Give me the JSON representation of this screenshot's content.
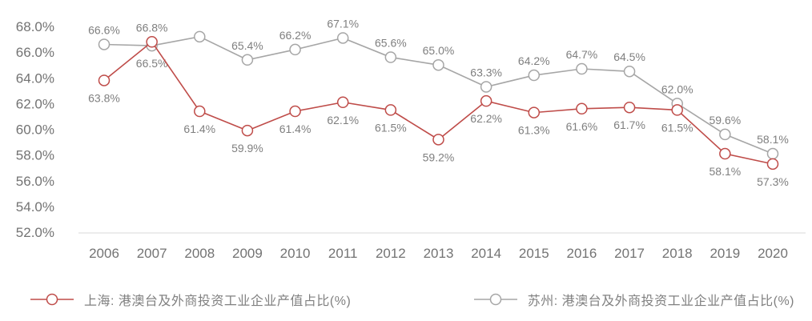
{
  "chart_data": {
    "type": "line",
    "title": "",
    "xlabel": "",
    "ylabel": "",
    "grid": false,
    "legend_position": "bottom",
    "ylim": [
      52,
      68
    ],
    "ytick_step": 2,
    "yticks": [
      "68.0%",
      "66.0%",
      "64.0%",
      "62.0%",
      "60.0%",
      "58.0%",
      "56.0%",
      "54.0%",
      "52.0%"
    ],
    "categories": [
      "2006",
      "2007",
      "2008",
      "2009",
      "2010",
      "2011",
      "2012",
      "2013",
      "2014",
      "2015",
      "2016",
      "2017",
      "2018",
      "2019",
      "2020"
    ],
    "series": [
      {
        "name": "上海: 港澳台及外商投资工业企业产值占比(%)",
        "color": "#bf4c49",
        "marker": "open-circle",
        "values": [
          63.8,
          66.8,
          61.4,
          59.9,
          61.4,
          62.1,
          61.5,
          59.2,
          62.2,
          61.3,
          61.6,
          61.7,
          61.5,
          58.1,
          57.3
        ],
        "point_labels": [
          "63.8%",
          "66.8%",
          "61.4%",
          "59.9%",
          "61.4%",
          "62.1%",
          "61.5%",
          "59.2%",
          "62.2%",
          "61.3%",
          "61.6%",
          "61.7%",
          "61.5%",
          "58.1%",
          "57.3%"
        ],
        "label_positions": [
          "below",
          "above",
          "below",
          "below",
          "below",
          "below",
          "below",
          "below",
          "below",
          "below",
          "below",
          "below",
          "below",
          "below",
          "below"
        ]
      },
      {
        "name": "苏州: 港澳台及外商投资工业企业产值占比(%)",
        "color": "#a6a6a6",
        "marker": "open-circle",
        "values": [
          66.6,
          66.5,
          67.2,
          65.4,
          66.2,
          67.1,
          65.6,
          65.0,
          63.3,
          64.2,
          64.7,
          64.5,
          62.0,
          59.6,
          58.1
        ],
        "point_labels": [
          "66.6%",
          "66.5%",
          "",
          "65.4%",
          "66.2%",
          "67.1%",
          "65.6%",
          "65.0%",
          "63.3%",
          "64.2%",
          "64.7%",
          "64.5%",
          "62.0%",
          "59.6%",
          "58.1%"
        ],
        "label_positions": [
          "above",
          "below",
          "none",
          "above",
          "above",
          "above",
          "above",
          "above",
          "above",
          "above",
          "above",
          "above",
          "above",
          "above",
          "above"
        ]
      }
    ],
    "colors": {
      "axis_line": "#d9d9d9",
      "axis_text": "#737373",
      "data_label_text": "#7f7f7f",
      "background": "#ffffff"
    }
  }
}
